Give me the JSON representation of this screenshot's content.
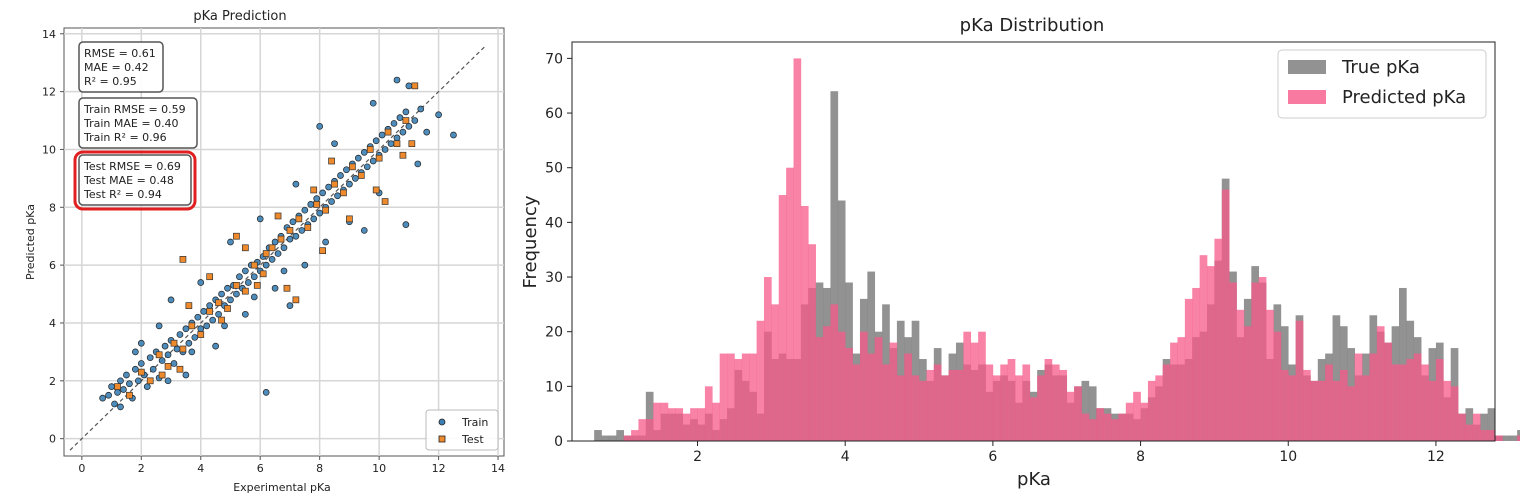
{
  "chart_data": [
    {
      "type": "scatter",
      "title": "pKa Prediction",
      "xlabel": "Experimental pKa",
      "ylabel": "Predicted pKa",
      "xlim": [
        -0.6,
        14.2
      ],
      "ylim": [
        -0.6,
        14.2
      ],
      "xticks": [
        "0",
        "2",
        "4",
        "6",
        "8",
        "10",
        "12",
        "14"
      ],
      "yticks": [
        "0",
        "2",
        "4",
        "6",
        "8",
        "10",
        "12",
        "14"
      ],
      "grid": true,
      "legend_position": "bottom-right",
      "diagonal": {
        "from": [
          -0.4,
          -0.4
        ],
        "to": [
          13.6,
          13.6
        ],
        "style": "dashed"
      },
      "metric_boxes": [
        {
          "lines": [
            "RMSE = 0.61",
            "MAE = 0.42",
            "R²   = 0.95"
          ],
          "highlight": false
        },
        {
          "lines": [
            "Train RMSE = 0.59",
            "Train MAE = 0.40",
            "Train R² = 0.96"
          ],
          "highlight": false
        },
        {
          "lines": [
            "Test RMSE = 0.69",
            "Test MAE = 0.48",
            "Test R² = 0.94"
          ],
          "highlight": true
        }
      ],
      "series": [
        {
          "name": "Train",
          "color": "#3b7fb4",
          "marker": "circle",
          "points": [
            [
              0.7,
              1.4
            ],
            [
              0.9,
              1.5
            ],
            [
              1.0,
              1.8
            ],
            [
              1.1,
              1.2
            ],
            [
              1.2,
              1.6
            ],
            [
              1.3,
              2.0
            ],
            [
              1.4,
              1.7
            ],
            [
              1.5,
              2.2
            ],
            [
              1.6,
              1.9
            ],
            [
              1.7,
              1.4
            ],
            [
              1.8,
              2.4
            ],
            [
              1.9,
              2.0
            ],
            [
              2.0,
              2.6
            ],
            [
              2.1,
              2.2
            ],
            [
              2.2,
              1.8
            ],
            [
              2.3,
              2.8
            ],
            [
              2.4,
              2.4
            ],
            [
              2.5,
              3.0
            ],
            [
              2.6,
              2.1
            ],
            [
              2.7,
              2.7
            ],
            [
              2.8,
              3.2
            ],
            [
              2.9,
              2.9
            ],
            [
              3.0,
              3.4
            ],
            [
              3.1,
              2.6
            ],
            [
              3.2,
              3.1
            ],
            [
              3.3,
              3.6
            ],
            [
              3.4,
              3.0
            ],
            [
              3.5,
              3.8
            ],
            [
              3.6,
              3.3
            ],
            [
              3.7,
              4.0
            ],
            [
              3.8,
              3.5
            ],
            [
              3.9,
              4.2
            ],
            [
              4.0,
              3.8
            ],
            [
              4.1,
              4.4
            ],
            [
              4.2,
              3.9
            ],
            [
              4.3,
              4.6
            ],
            [
              4.4,
              4.1
            ],
            [
              4.5,
              4.8
            ],
            [
              4.6,
              4.3
            ],
            [
              4.7,
              5.0
            ],
            [
              4.8,
              4.6
            ],
            [
              4.9,
              5.2
            ],
            [
              5.0,
              4.8
            ],
            [
              5.1,
              5.3
            ],
            [
              5.2,
              5.0
            ],
            [
              5.3,
              5.6
            ],
            [
              5.4,
              5.2
            ],
            [
              5.5,
              5.8
            ],
            [
              5.6,
              5.4
            ],
            [
              5.7,
              6.0
            ],
            [
              5.8,
              5.6
            ],
            [
              5.9,
              6.1
            ],
            [
              6.0,
              5.8
            ],
            [
              6.1,
              6.3
            ],
            [
              6.2,
              6.0
            ],
            [
              6.3,
              6.6
            ],
            [
              6.4,
              6.2
            ],
            [
              6.5,
              6.8
            ],
            [
              6.6,
              6.4
            ],
            [
              6.7,
              7.0
            ],
            [
              6.8,
              6.6
            ],
            [
              6.9,
              7.3
            ],
            [
              7.0,
              6.9
            ],
            [
              7.1,
              7.5
            ],
            [
              7.2,
              7.0
            ],
            [
              7.3,
              7.7
            ],
            [
              7.4,
              7.2
            ],
            [
              7.5,
              7.9
            ],
            [
              7.6,
              7.4
            ],
            [
              7.7,
              8.1
            ],
            [
              7.8,
              7.6
            ],
            [
              7.9,
              8.3
            ],
            [
              8.0,
              7.8
            ],
            [
              8.1,
              8.5
            ],
            [
              8.2,
              8.0
            ],
            [
              8.3,
              8.7
            ],
            [
              8.4,
              8.2
            ],
            [
              8.5,
              8.9
            ],
            [
              8.6,
              8.4
            ],
            [
              8.7,
              9.1
            ],
            [
              8.8,
              8.6
            ],
            [
              8.9,
              9.3
            ],
            [
              9.0,
              8.8
            ],
            [
              9.1,
              9.5
            ],
            [
              9.2,
              9.0
            ],
            [
              9.3,
              9.7
            ],
            [
              9.4,
              9.2
            ],
            [
              9.5,
              9.9
            ],
            [
              9.6,
              9.4
            ],
            [
              9.7,
              10.1
            ],
            [
              9.8,
              9.6
            ],
            [
              9.9,
              10.3
            ],
            [
              10.0,
              9.8
            ],
            [
              10.1,
              10.5
            ],
            [
              10.2,
              10.0
            ],
            [
              10.3,
              10.7
            ],
            [
              10.4,
              10.2
            ],
            [
              10.5,
              10.9
            ],
            [
              10.6,
              10.4
            ],
            [
              10.7,
              11.1
            ],
            [
              10.8,
              10.6
            ],
            [
              10.9,
              11.3
            ],
            [
              11.0,
              10.8
            ],
            [
              11.2,
              11.0
            ],
            [
              11.4,
              11.4
            ],
            [
              11.6,
              10.6
            ],
            [
              12.0,
              11.2
            ],
            [
              12.5,
              10.5
            ],
            [
              10.6,
              12.4
            ],
            [
              11.0,
              12.2
            ],
            [
              6.2,
              1.6
            ],
            [
              2.6,
              3.9
            ],
            [
              1.8,
              3.0
            ],
            [
              7.0,
              4.6
            ],
            [
              9.5,
              7.2
            ],
            [
              10.9,
              7.4
            ],
            [
              8.0,
              10.8
            ],
            [
              7.2,
              8.8
            ],
            [
              3.5,
              2.2
            ],
            [
              5.0,
              6.8
            ],
            [
              2.0,
              3.3
            ],
            [
              4.0,
              5.4
            ],
            [
              6.0,
              7.6
            ],
            [
              8.5,
              10.2
            ],
            [
              9.0,
              7.5
            ],
            [
              10.0,
              8.5
            ],
            [
              3.0,
              4.8
            ],
            [
              4.5,
              3.2
            ],
            [
              5.5,
              4.3
            ],
            [
              6.5,
              5.2
            ],
            [
              7.5,
              6.0
            ],
            [
              8.2,
              6.8
            ],
            [
              9.8,
              11.6
            ],
            [
              11.3,
              9.5
            ],
            [
              1.3,
              1.1
            ],
            [
              2.9,
              2.0
            ],
            [
              3.7,
              3.0
            ],
            [
              4.8,
              3.9
            ],
            [
              5.8,
              4.9
            ],
            [
              6.8,
              5.8
            ]
          ]
        },
        {
          "name": "Test",
          "color": "#ee8a2c",
          "marker": "square",
          "points": [
            [
              1.2,
              1.8
            ],
            [
              1.6,
              1.5
            ],
            [
              2.0,
              2.3
            ],
            [
              2.3,
              2.0
            ],
            [
              2.6,
              2.9
            ],
            [
              2.9,
              2.5
            ],
            [
              3.1,
              3.3
            ],
            [
              3.4,
              3.1
            ],
            [
              3.7,
              3.9
            ],
            [
              4.0,
              3.6
            ],
            [
              4.3,
              4.4
            ],
            [
              4.6,
              4.7
            ],
            [
              4.9,
              4.5
            ],
            [
              5.2,
              5.3
            ],
            [
              5.5,
              5.1
            ],
            [
              5.8,
              6.0
            ],
            [
              6.1,
              5.7
            ],
            [
              6.4,
              6.6
            ],
            [
              6.7,
              6.9
            ],
            [
              7.0,
              7.2
            ],
            [
              7.3,
              7.6
            ],
            [
              7.6,
              7.3
            ],
            [
              7.9,
              8.1
            ],
            [
              8.2,
              7.9
            ],
            [
              8.5,
              8.8
            ],
            [
              8.8,
              8.5
            ],
            [
              9.1,
              9.4
            ],
            [
              9.4,
              9.1
            ],
            [
              9.7,
              10.0
            ],
            [
              10.0,
              9.7
            ],
            [
              10.3,
              10.6
            ],
            [
              10.6,
              10.2
            ],
            [
              10.9,
              11.0
            ],
            [
              11.2,
              12.2
            ],
            [
              3.4,
              6.2
            ],
            [
              5.2,
              7.0
            ],
            [
              5.5,
              6.6
            ],
            [
              6.9,
              5.2
            ],
            [
              7.2,
              4.8
            ],
            [
              8.1,
              6.5
            ],
            [
              9.0,
              7.6
            ],
            [
              10.2,
              8.2
            ],
            [
              10.8,
              9.8
            ],
            [
              11.1,
              10.2
            ],
            [
              4.3,
              5.6
            ],
            [
              2.7,
              2.2
            ],
            [
              3.3,
              2.4
            ],
            [
              6.2,
              6.4
            ],
            [
              8.4,
              9.6
            ],
            [
              9.9,
              8.6
            ],
            [
              7.8,
              8.6
            ],
            [
              6.6,
              7.7
            ],
            [
              4.7,
              4.1
            ],
            [
              3.6,
              4.6
            ],
            [
              5.9,
              5.3
            ]
          ]
        }
      ]
    },
    {
      "type": "histogram",
      "title": "pKa Distribution",
      "xlabel": "pKa",
      "ylabel": "Frequency",
      "xlim": [
        0.3,
        12.8
      ],
      "ylim": [
        0,
        73
      ],
      "xticks": [
        "2",
        "4",
        "6",
        "8",
        "10",
        "12"
      ],
      "yticks": [
        "0",
        "10",
        "20",
        "30",
        "40",
        "50",
        "60",
        "70"
      ],
      "bin_start": 0.6,
      "bin_width": 0.1,
      "legend_position": "top-right",
      "series": [
        {
          "name": "True pKa",
          "color": "#7f7f7f",
          "counts": [
            2,
            1,
            1,
            2,
            1,
            1,
            1,
            9,
            2,
            5,
            5,
            5,
            3,
            4,
            3,
            5,
            2,
            4,
            6,
            13,
            11,
            9,
            5,
            20,
            15,
            16,
            15,
            15,
            25,
            28,
            29,
            28,
            64,
            44,
            29,
            16,
            26,
            31,
            20,
            25,
            17,
            22,
            19,
            22,
            15,
            11,
            17,
            12,
            16,
            18,
            14,
            13,
            14,
            9,
            11,
            12,
            11,
            7,
            11,
            9,
            13,
            14,
            12,
            12,
            7,
            10,
            11,
            10,
            6,
            6,
            5,
            5,
            5,
            4,
            6,
            8,
            10,
            15,
            14,
            14,
            15,
            19,
            20,
            25,
            33,
            48,
            31,
            19,
            26,
            32,
            29,
            15,
            25,
            21,
            14,
            23,
            12,
            11,
            15,
            16,
            23,
            21,
            17,
            12,
            16,
            23,
            20,
            18,
            21,
            28,
            22,
            19,
            12,
            17,
            18,
            8,
            17,
            5,
            6,
            3,
            5,
            6,
            1,
            1,
            1,
            2,
            1,
            1,
            1
          ]
        },
        {
          "name": "Predicted pKa",
          "color": "#f7598a",
          "counts": [
            0,
            0,
            0,
            0,
            1,
            2,
            4,
            4,
            7,
            7,
            6,
            6,
            5,
            6,
            6,
            10,
            7,
            16,
            16,
            15,
            16,
            16,
            22,
            30,
            25,
            45,
            50,
            70,
            43,
            36,
            19,
            21,
            25,
            20,
            17,
            14,
            20,
            16,
            19,
            14,
            18,
            12,
            16,
            12,
            11,
            13,
            14,
            12,
            13,
            13,
            20,
            18,
            20,
            14,
            12,
            14,
            15,
            12,
            14,
            8,
            12,
            15,
            14,
            13,
            9,
            10,
            5,
            4,
            6,
            5,
            4,
            5,
            7,
            9,
            7,
            11,
            12,
            14,
            18,
            19,
            26,
            28,
            34,
            32,
            37,
            46,
            29,
            24,
            21,
            29,
            30,
            24,
            20,
            13,
            12,
            22,
            13,
            11,
            11,
            14,
            11,
            13,
            10,
            16,
            12,
            16,
            21,
            18,
            14,
            14,
            15,
            16,
            14,
            11,
            15,
            11,
            10,
            5,
            3,
            5,
            2,
            2,
            1,
            0,
            0,
            1,
            2,
            1,
            0,
            0
          ]
        }
      ]
    }
  ]
}
